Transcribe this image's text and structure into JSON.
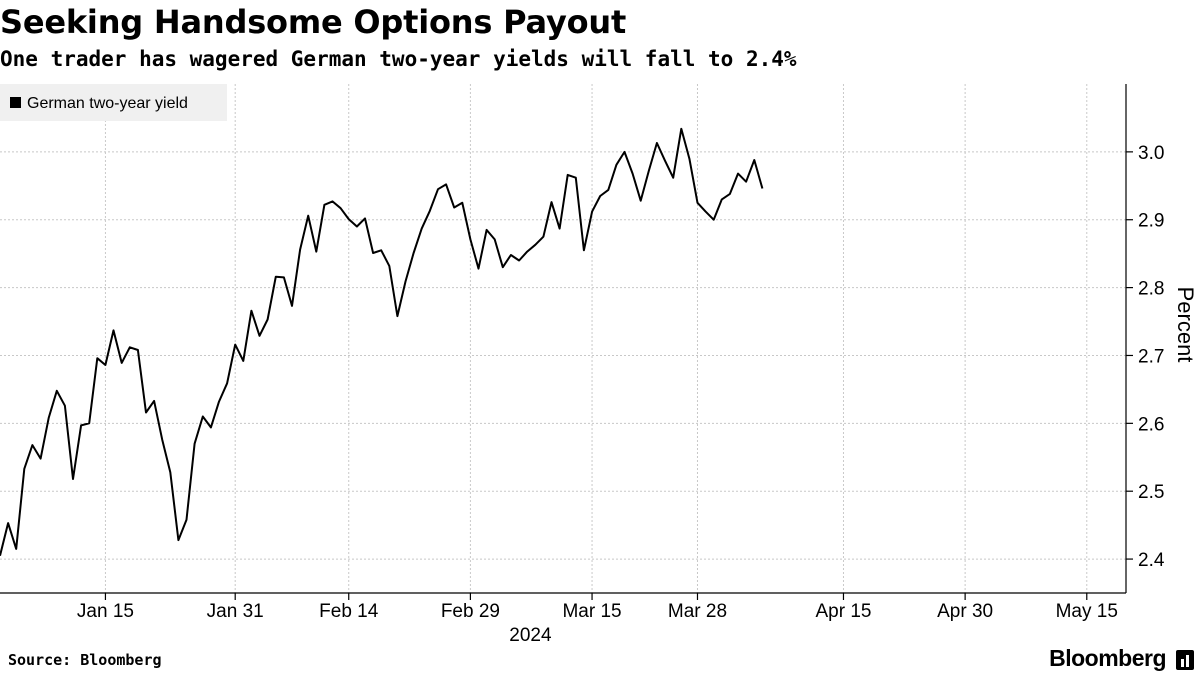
{
  "header": {
    "title": "Seeking Handsome Options Payout",
    "subtitle": "One trader has wagered German two-year yields will fall to 2.4%"
  },
  "footer": {
    "source": "Source: Bloomberg",
    "brand": "Bloomberg"
  },
  "colors": {
    "line": "#000000",
    "grid": "#c8c8c8",
    "legend_bg": "#f0f0f0"
  },
  "icons": {
    "brand": "bloomberg-terminal-icon"
  },
  "chart_data": {
    "type": "line",
    "title": "Seeking Handsome Options Payout",
    "subtitle": "One trader has wagered German two-year yields will fall to 2.4%",
    "ylabel": "Percent",
    "xlabel": "2024",
    "ylim": [
      2.35,
      3.1
    ],
    "y_ticks": [
      2.4,
      2.5,
      2.6,
      2.7,
      2.8,
      2.9,
      3.0
    ],
    "y_tick_labels": [
      "2.4",
      "2.5",
      "2.6",
      "2.7",
      "2.8",
      "2.9",
      "3.0"
    ],
    "xlim": [
      "2024-01-02",
      "2024-05-17"
    ],
    "x_ticks": [
      "2024-01-15",
      "2024-01-31",
      "2024-02-14",
      "2024-02-29",
      "2024-03-15",
      "2024-03-28",
      "2024-04-15",
      "2024-04-30",
      "2024-05-15"
    ],
    "x_tick_labels": [
      "Jan 15",
      "Jan 31",
      "Feb 14",
      "Feb 29",
      "Mar 15",
      "Mar 28",
      "Apr 15",
      "Apr 30",
      "May 15"
    ],
    "year_label": "2024",
    "grid": true,
    "legend_position": "top-left",
    "series": [
      {
        "name": "German two-year yield",
        "color": "#000000",
        "points": [
          [
            "2024-01-02",
            2.405
          ],
          [
            "2024-01-03",
            2.453
          ],
          [
            "2024-01-04",
            2.415
          ],
          [
            "2024-01-05",
            2.533
          ],
          [
            "2024-01-06",
            2.568
          ],
          [
            "2024-01-07",
            2.548
          ],
          [
            "2024-01-08",
            2.608
          ],
          [
            "2024-01-09",
            2.648
          ],
          [
            "2024-01-10",
            2.626
          ],
          [
            "2024-01-11",
            2.518
          ],
          [
            "2024-01-12",
            2.597
          ],
          [
            "2024-01-13",
            2.6
          ],
          [
            "2024-01-14",
            2.696
          ],
          [
            "2024-01-15",
            2.686
          ],
          [
            "2024-01-16",
            2.737
          ],
          [
            "2024-01-17",
            2.689
          ],
          [
            "2024-01-18",
            2.712
          ],
          [
            "2024-01-19",
            2.708
          ],
          [
            "2024-01-20",
            2.616
          ],
          [
            "2024-01-21",
            2.633
          ],
          [
            "2024-01-22",
            2.576
          ],
          [
            "2024-01-23",
            2.528
          ],
          [
            "2024-01-24",
            2.428
          ],
          [
            "2024-01-25",
            2.458
          ],
          [
            "2024-01-26",
            2.57
          ],
          [
            "2024-01-27",
            2.61
          ],
          [
            "2024-01-28",
            2.594
          ],
          [
            "2024-01-29",
            2.632
          ],
          [
            "2024-01-30",
            2.659
          ],
          [
            "2024-01-31",
            2.716
          ],
          [
            "2024-02-01",
            2.692
          ],
          [
            "2024-02-02",
            2.766
          ],
          [
            "2024-02-03",
            2.729
          ],
          [
            "2024-02-04",
            2.753
          ],
          [
            "2024-02-05",
            2.816
          ],
          [
            "2024-02-06",
            2.815
          ],
          [
            "2024-02-07",
            2.773
          ],
          [
            "2024-02-08",
            2.856
          ],
          [
            "2024-02-09",
            2.906
          ],
          [
            "2024-02-10",
            2.853
          ],
          [
            "2024-02-11",
            2.922
          ],
          [
            "2024-02-12",
            2.927
          ],
          [
            "2024-02-13",
            2.917
          ],
          [
            "2024-02-14",
            2.901
          ],
          [
            "2024-02-15",
            2.89
          ],
          [
            "2024-02-16",
            2.902
          ],
          [
            "2024-02-17",
            2.851
          ],
          [
            "2024-02-18",
            2.855
          ],
          [
            "2024-02-19",
            2.832
          ],
          [
            "2024-02-20",
            2.758
          ],
          [
            "2024-02-21",
            2.809
          ],
          [
            "2024-02-22",
            2.851
          ],
          [
            "2024-02-23",
            2.887
          ],
          [
            "2024-02-24",
            2.913
          ],
          [
            "2024-02-25",
            2.945
          ],
          [
            "2024-02-26",
            2.952
          ],
          [
            "2024-02-27",
            2.918
          ],
          [
            "2024-02-28",
            2.925
          ],
          [
            "2024-02-29",
            2.871
          ],
          [
            "2024-03-01",
            2.828
          ],
          [
            "2024-03-02",
            2.885
          ],
          [
            "2024-03-03",
            2.871
          ],
          [
            "2024-03-04",
            2.83
          ],
          [
            "2024-03-05",
            2.848
          ],
          [
            "2024-03-06",
            2.84
          ],
          [
            "2024-03-07",
            2.853
          ],
          [
            "2024-03-08",
            2.863
          ],
          [
            "2024-03-09",
            2.875
          ],
          [
            "2024-03-10",
            2.926
          ],
          [
            "2024-03-11",
            2.887
          ],
          [
            "2024-03-12",
            2.966
          ],
          [
            "2024-03-13",
            2.962
          ],
          [
            "2024-03-14",
            2.855
          ],
          [
            "2024-03-15",
            2.912
          ],
          [
            "2024-03-16",
            2.935
          ],
          [
            "2024-03-17",
            2.944
          ],
          [
            "2024-03-18",
            2.981
          ],
          [
            "2024-03-19",
            3.0
          ],
          [
            "2024-03-20",
            2.968
          ],
          [
            "2024-03-21",
            2.928
          ],
          [
            "2024-03-22",
            2.972
          ],
          [
            "2024-03-23",
            3.013
          ],
          [
            "2024-03-24",
            2.987
          ],
          [
            "2024-03-25",
            2.962
          ],
          [
            "2024-03-26",
            3.034
          ],
          [
            "2024-03-27",
            2.99
          ],
          [
            "2024-03-28",
            2.925
          ],
          [
            "2024-03-29",
            2.912
          ],
          [
            "2024-03-30",
            2.9
          ],
          [
            "2024-03-31",
            2.93
          ],
          [
            "2024-04-01",
            2.938
          ],
          [
            "2024-04-02",
            2.968
          ],
          [
            "2024-04-03",
            2.956
          ],
          [
            "2024-04-04",
            2.988
          ],
          [
            "2024-04-05",
            2.946
          ]
        ]
      }
    ]
  }
}
